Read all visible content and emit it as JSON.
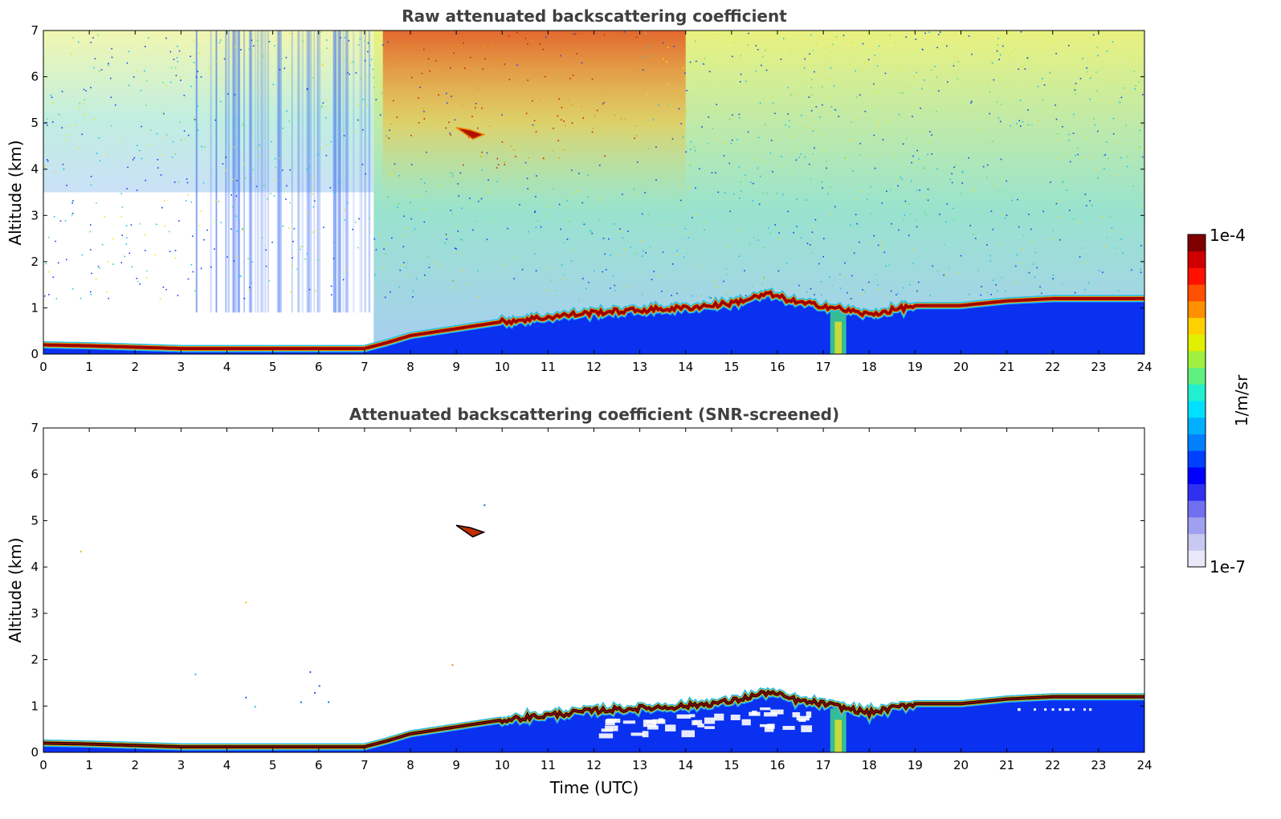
{
  "chart_data": [
    {
      "type": "heatmap",
      "title": "Raw attenuated backscattering coefficient",
      "xlabel": "",
      "ylabel": "Altitude (km)",
      "xlim": [
        0,
        24
      ],
      "ylim": [
        0,
        7
      ],
      "x_ticks": [
        "0",
        "1",
        "2",
        "3",
        "4",
        "5",
        "6",
        "7",
        "8",
        "9",
        "10",
        "11",
        "12",
        "13",
        "14",
        "15",
        "16",
        "17",
        "18",
        "19",
        "20",
        "21",
        "22",
        "23",
        "24"
      ],
      "y_ticks": [
        "0",
        "1",
        "2",
        "3",
        "4",
        "5",
        "6",
        "7"
      ],
      "layer_top_km": {
        "x": [
          0,
          1,
          2,
          3,
          4,
          5,
          6,
          7,
          7.5,
          8,
          9,
          10,
          11,
          12,
          13,
          14,
          15,
          15.8,
          16.5,
          17,
          17.5,
          18,
          18.5,
          19,
          20,
          21,
          22,
          23,
          24
        ],
        "y": [
          0.2,
          0.18,
          0.15,
          0.12,
          0.12,
          0.12,
          0.12,
          0.12,
          0.25,
          0.4,
          0.55,
          0.7,
          0.8,
          0.9,
          0.95,
          1.0,
          1.1,
          1.3,
          1.1,
          1.05,
          0.95,
          0.85,
          0.95,
          1.05,
          1.05,
          1.15,
          1.2,
          1.2,
          1.2
        ]
      },
      "elevated_layer": {
        "x": [
          9.0,
          9.6
        ],
        "y_km": [
          4.7,
          4.9
        ]
      },
      "background_level": "noisy signal above layer, low (blue) 3–7 UTC, high (red/orange) 8–10 UTC near 5–7 km"
    },
    {
      "type": "heatmap",
      "title": "Attenuated backscattering coefficient (SNR-screened)",
      "xlabel": "Time (UTC)",
      "ylabel": "Altitude (km)",
      "xlim": [
        0,
        24
      ],
      "ylim": [
        0,
        7
      ],
      "x_ticks": [
        "0",
        "1",
        "2",
        "3",
        "4",
        "5",
        "6",
        "7",
        "8",
        "9",
        "10",
        "11",
        "12",
        "13",
        "14",
        "15",
        "16",
        "17",
        "18",
        "19",
        "20",
        "21",
        "22",
        "23",
        "24"
      ],
      "y_ticks": [
        "0",
        "1",
        "2",
        "3",
        "4",
        "5",
        "6",
        "7"
      ],
      "layer_top_km": {
        "x": [
          0,
          1,
          2,
          3,
          4,
          5,
          6,
          7,
          7.5,
          8,
          9,
          10,
          11,
          12,
          13,
          14,
          15,
          15.8,
          16.5,
          17,
          17.5,
          18,
          18.5,
          19,
          20,
          21,
          22,
          23,
          24
        ],
        "y": [
          0.2,
          0.18,
          0.15,
          0.12,
          0.12,
          0.12,
          0.12,
          0.12,
          0.25,
          0.4,
          0.55,
          0.7,
          0.8,
          0.9,
          0.95,
          1.0,
          1.1,
          1.3,
          1.1,
          1.05,
          0.95,
          0.85,
          0.95,
          1.05,
          1.05,
          1.15,
          1.2,
          1.2,
          1.2
        ]
      },
      "elevated_layer": {
        "x": [
          9.0,
          9.6
        ],
        "y_km": [
          4.7,
          4.9
        ]
      },
      "background_level": "screened (white) above layer"
    }
  ],
  "colorbar": {
    "max_label": "1e-4",
    "min_label": "1e-7",
    "unit_label": "1/m/sr",
    "colors": [
      "#e8e8f8",
      "#c8c8f0",
      "#a0a0f0",
      "#7070f0",
      "#3030f0",
      "#0000ff",
      "#0040ff",
      "#0080ff",
      "#00b0ff",
      "#00e0ff",
      "#20f0d0",
      "#60f080",
      "#a0f040",
      "#e0f000",
      "#ffd000",
      "#ff9000",
      "#ff5000",
      "#ff1000",
      "#d00000",
      "#800000"
    ]
  },
  "colors": {
    "layer": "#a00000",
    "below_layer": "#0a30f0",
    "title": "#404040"
  }
}
